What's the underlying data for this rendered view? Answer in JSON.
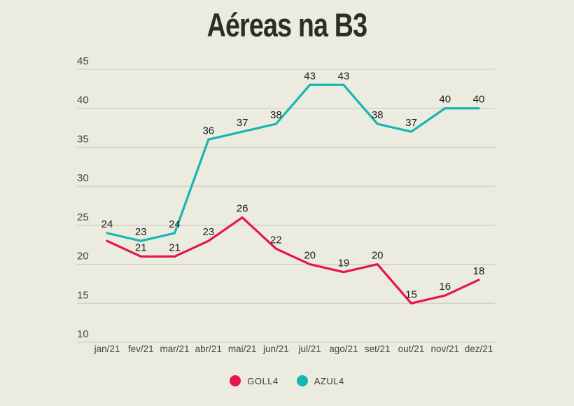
{
  "page": {
    "background": "#ebebdf"
  },
  "chart_data": {
    "type": "line",
    "title": "Aéreas na B3",
    "categories": [
      "jan/21",
      "fev/21",
      "mar/21",
      "abr/21",
      "mai/21",
      "jun/21",
      "jul/21",
      "ago/21",
      "set/21",
      "out/21",
      "nov/21",
      "dez/21"
    ],
    "series": [
      {
        "name": "GOLL4",
        "color": "#e6164d",
        "values": [
          23,
          21,
          21,
          23,
          26,
          22,
          20,
          19,
          20,
          15,
          16,
          18
        ],
        "point_labels": [
          null,
          "21",
          "21",
          "23",
          "26",
          "22",
          "20",
          "19",
          "20",
          "15",
          "16",
          "18"
        ]
      },
      {
        "name": "AZUL4",
        "color": "#16b6b2",
        "values": [
          24,
          23,
          24,
          36,
          37,
          38,
          43,
          43,
          38,
          37,
          40,
          40
        ],
        "point_labels": [
          "24",
          "23",
          "24",
          "36",
          "37",
          "38",
          "43",
          "43",
          "38",
          "37",
          "40",
          "40"
        ]
      }
    ],
    "xlabel": "",
    "ylabel": "",
    "ylim": [
      10,
      45
    ],
    "yticks": [
      10,
      15,
      20,
      25,
      30,
      35,
      40,
      45
    ],
    "grid": true,
    "grid_color": "#c9c9bb",
    "legend_position": "bottom"
  }
}
